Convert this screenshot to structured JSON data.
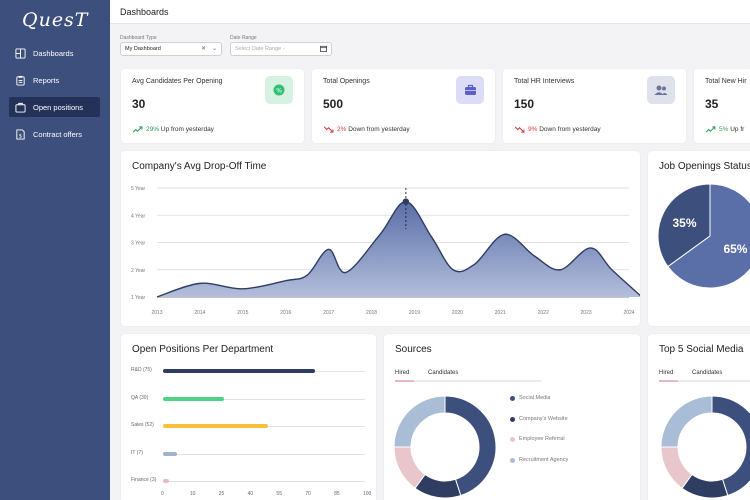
{
  "app": {
    "logo": "QuesT"
  },
  "sidebar": {
    "items": [
      {
        "label": "Dashboards",
        "icon": "dashboard-icon"
      },
      {
        "label": "Reports",
        "icon": "clipboard-icon"
      },
      {
        "label": "Open positions",
        "icon": "briefcase-icon"
      },
      {
        "label": "Contract offers",
        "icon": "contract-icon"
      }
    ]
  },
  "header": {
    "title": "Dashboards"
  },
  "filters": {
    "dashboard_type": {
      "label": "Dashboard Type",
      "value": "My Dashboard"
    },
    "date_range": {
      "label": "Date Range",
      "placeholder": "Select Date Range -"
    }
  },
  "stats": [
    {
      "label": "Avg Candidates Per Opening",
      "value": "30",
      "pct": "29%",
      "trend_text": "Up from yesterday",
      "direction": "up",
      "icon": "percent-icon",
      "icon_bg": "#d7f2e2",
      "icon_color": "#2e9b57"
    },
    {
      "label": "Total Openings",
      "value": "500",
      "pct": "2%",
      "trend_text": "Down from yesterday",
      "direction": "down",
      "icon": "briefcase-icon",
      "icon_bg": "#dcdcf6",
      "icon_color": "#5b5fc7"
    },
    {
      "label": "Total HR Interviews",
      "value": "150",
      "pct": "9%",
      "trend_text": "Down from yesterday",
      "direction": "down",
      "icon": "users-icon",
      "icon_bg": "#dfe1ec",
      "icon_color": "#6d7596"
    },
    {
      "label": "Total New Hir",
      "value": "35",
      "pct": "5%",
      "trend_text": "Up fr",
      "direction": "up",
      "icon": "",
      "icon_bg": "",
      "icon_color": ""
    }
  ],
  "dropoff_chart": {
    "title": "Company's Avg Drop-Off Time",
    "y_ticks": [
      "5 Year",
      "4 Year",
      "3 Year",
      "2 Year",
      "1 Year"
    ],
    "x_ticks": [
      "2013",
      "2014",
      "2015",
      "2016",
      "2017",
      "2018",
      "2019",
      "2020",
      "2021",
      "2022",
      "2023",
      "2024"
    ]
  },
  "job_status": {
    "title": "Job Openings Status",
    "slices": [
      {
        "label": "35%",
        "value": 35,
        "color": "#3d4f7c"
      },
      {
        "label": "65%",
        "value": 65,
        "color": "#5a6ea8"
      }
    ]
  },
  "departments": {
    "title": "Open Positions Per Department",
    "items": [
      {
        "label": "R&D (75)",
        "value": 75,
        "color": "#2f3d63"
      },
      {
        "label": "QA (30)",
        "value": 30,
        "color": "#4ed488"
      },
      {
        "label": "Sales (52)",
        "value": 52,
        "color": "#f6c23e"
      },
      {
        "label": "IT (7)",
        "value": 7,
        "color": "#9fb2cf"
      },
      {
        "label": "Finance (3)",
        "value": 3,
        "color": "#e7bcc5"
      }
    ],
    "x_ticks": [
      "0",
      "10",
      "25",
      "40",
      "55",
      "70",
      "85",
      "100"
    ]
  },
  "sources": {
    "title": "Sources",
    "tabs": [
      "Hired",
      "Candidates"
    ],
    "legend": [
      {
        "label": "Social Media",
        "color": "#3d4f7c"
      },
      {
        "label": "Company's Website",
        "color": "#2f3d63"
      },
      {
        "label": "Employee Referral",
        "color": "#e8c6cc"
      },
      {
        "label": "Recruitment Agency",
        "color": "#a9bdd6"
      }
    ]
  },
  "social": {
    "title": "Top 5 Social Media",
    "tabs": [
      "Hired",
      "Candidates"
    ]
  },
  "chart_data": [
    {
      "type": "area",
      "title": "Company's Avg Drop-Off Time",
      "x": [
        2013,
        2014,
        2015,
        2016,
        2017,
        2018,
        2019,
        2020,
        2021,
        2022,
        2023,
        2024
      ],
      "ylim": [
        1,
        5
      ],
      "grid": true,
      "points": [
        {
          "x": 2013.0,
          "y": 1.0
        },
        {
          "x": 2014.0,
          "y": 1.5
        },
        {
          "x": 2015.0,
          "y": 1.3
        },
        {
          "x": 2016.0,
          "y": 1.6
        },
        {
          "x": 2016.5,
          "y": 1.8
        },
        {
          "x": 2017.0,
          "y": 2.75
        },
        {
          "x": 2017.4,
          "y": 1.9
        },
        {
          "x": 2018.2,
          "y": 3.3
        },
        {
          "x": 2018.8,
          "y": 4.5
        },
        {
          "x": 2019.4,
          "y": 3.2
        },
        {
          "x": 2019.9,
          "y": 2.0
        },
        {
          "x": 2020.4,
          "y": 2.2
        },
        {
          "x": 2021.1,
          "y": 3.3
        },
        {
          "x": 2021.8,
          "y": 2.5
        },
        {
          "x": 2022.4,
          "y": 2.0
        },
        {
          "x": 2023.1,
          "y": 2.8
        },
        {
          "x": 2023.6,
          "y": 2.0
        },
        {
          "x": 2024.3,
          "y": 1.0
        }
      ],
      "highlight": {
        "x": 2018.8,
        "y": 4.5
      }
    },
    {
      "type": "pie",
      "title": "Job Openings Status",
      "labels": [
        "35%",
        "65%"
      ],
      "values": [
        35,
        65
      ]
    },
    {
      "type": "bar",
      "title": "Open Positions Per Department",
      "categories": [
        "R&D",
        "QA",
        "Sales",
        "IT",
        "Finance"
      ],
      "values": [
        75,
        30,
        52,
        7,
        3
      ],
      "xlim": [
        0,
        100
      ]
    },
    {
      "type": "pie",
      "title": "Sources",
      "labels": [
        "Social Media",
        "Company's Website",
        "Employee Referral",
        "Recruitment Agency"
      ],
      "values": [
        45,
        15,
        15,
        25
      ]
    }
  ]
}
